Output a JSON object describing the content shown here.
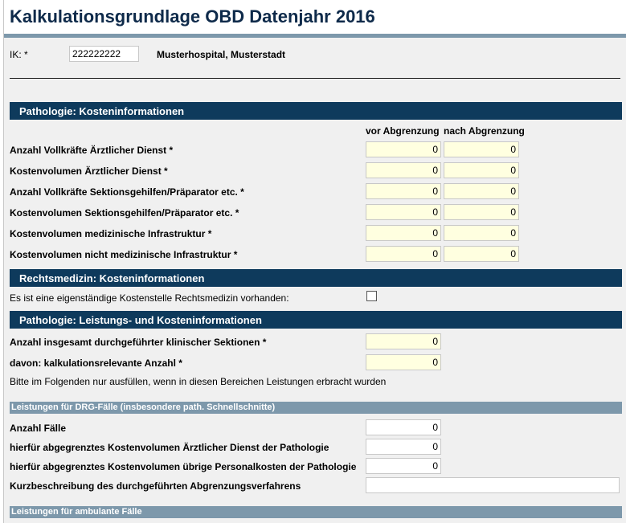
{
  "header": {
    "title": "Kalkulationsgrundlage OBD Datenjahr 2016"
  },
  "ik": {
    "label": "IK: *",
    "value": "222222222",
    "hospital": "Musterhospital, Musterstadt"
  },
  "pathologie_kosten": {
    "heading": "Pathologie: Kosteninformationen",
    "col_vor": "vor Abgrenzung",
    "col_nach": "nach Abgrenzung",
    "rows": [
      {
        "label": "Anzahl Vollkräfte Ärztlicher Dienst *",
        "vor": "0",
        "nach": "0"
      },
      {
        "label": "Kostenvolumen Ärztlicher Dienst *",
        "vor": "0",
        "nach": "0"
      },
      {
        "label": "Anzahl Vollkräfte Sektionsgehilfen/Präparator etc. *",
        "vor": "0",
        "nach": "0"
      },
      {
        "label": "Kostenvolumen Sektionsgehilfen/Präparator etc. *",
        "vor": "0",
        "nach": "0"
      },
      {
        "label": "Kostenvolumen medizinische Infrastruktur *",
        "vor": "0",
        "nach": "0"
      },
      {
        "label": "Kostenvolumen nicht medizinische Infrastruktur *",
        "vor": "0",
        "nach": "0"
      }
    ]
  },
  "rechtsmedizin": {
    "heading": "Rechtsmedizin: Kosteninformationen",
    "checkbox_label": "Es ist eine eigenständige Kostenstelle Rechtsmedizin vorhanden:",
    "checked": false
  },
  "pathologie_leistung": {
    "heading": "Pathologie: Leistungs- und Kosteninformationen",
    "rows": [
      {
        "label": "Anzahl insgesamt durchgeführter klinischer Sektionen *",
        "value": "0"
      },
      {
        "label": "davon: kalkulationsrelevante Anzahl *",
        "value": "0"
      }
    ],
    "note": "Bitte im Folgenden nur ausfüllen, wenn in diesen Bereichen Leistungen erbracht wurden"
  },
  "drg": {
    "heading": "Leistungen für DRG-Fälle (insbesondere path. Schnellschnitte)",
    "rows": [
      {
        "label": "Anzahl Fälle",
        "value": "0"
      },
      {
        "label": "hierfür abgegrenztes Kostenvolumen Ärztlicher Dienst der Pathologie",
        "value": "0"
      },
      {
        "label": "hierfür abgegrenztes Kostenvolumen übrige Personalkosten der Pathologie",
        "value": "0"
      }
    ],
    "kurz_label": "Kurzbeschreibung des durchgeführten Abgrenzungsverfahrens",
    "kurz_value": ""
  },
  "ambulant": {
    "heading": "Leistungen für ambulante Fälle"
  }
}
